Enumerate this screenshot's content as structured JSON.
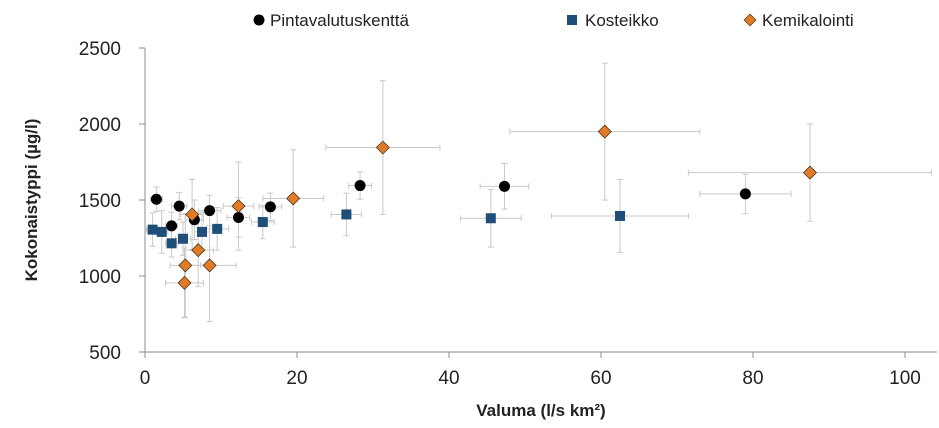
{
  "chart_data": {
    "type": "scatter",
    "xlabel": "Valuma (l/s km²)",
    "ylabel": "Kokonaistyppi (µg/l)",
    "xlim": [
      0,
      105
    ],
    "ylim": [
      500,
      2500
    ],
    "x_ticks": [
      0,
      20,
      40,
      60,
      80,
      100
    ],
    "y_ticks": [
      500,
      1000,
      1500,
      2000,
      2500
    ],
    "x_tick_labels": [
      "0",
      "20",
      "40",
      "60",
      "80",
      "100"
    ],
    "y_tick_labels": [
      "500",
      "1000",
      "1500",
      "2000",
      "2500"
    ],
    "grid": false,
    "error_bars": true,
    "legend_position": "top",
    "series": [
      {
        "name": "Pintavalutuskenttä",
        "marker": "circle",
        "color": "#000000",
        "points": [
          {
            "x": 1.5,
            "y": 1505,
            "xerr": 0.8,
            "yerr": 80
          },
          {
            "x": 3.5,
            "y": 1330,
            "xerr": 0.8,
            "yerr": 90
          },
          {
            "x": 4.5,
            "y": 1460,
            "xerr": 1.0,
            "yerr": 90
          },
          {
            "x": 6.5,
            "y": 1370,
            "xerr": 1.2,
            "yerr": 130
          },
          {
            "x": 8.5,
            "y": 1430,
            "xerr": 1.5,
            "yerr": 100
          },
          {
            "x": 12.3,
            "y": 1385,
            "xerr": 1.5,
            "yerr": 130
          },
          {
            "x": 16.5,
            "y": 1455,
            "xerr": 1.5,
            "yerr": 90
          },
          {
            "x": 28.3,
            "y": 1595,
            "xerr": 1.5,
            "yerr": 90
          },
          {
            "x": 47.3,
            "y": 1590,
            "xerr": 3.2,
            "yerr": 150
          },
          {
            "x": 79.0,
            "y": 1540,
            "xerr": 6.0,
            "yerr": 130
          }
        ]
      },
      {
        "name": "Kosteikko",
        "marker": "square",
        "color": "#1F4E79",
        "points": [
          {
            "x": 1.0,
            "y": 1305,
            "xerr": 0.8,
            "yerr": 110
          },
          {
            "x": 2.2,
            "y": 1290,
            "xerr": 0.8,
            "yerr": 140
          },
          {
            "x": 3.5,
            "y": 1215,
            "xerr": 0.8,
            "yerr": 90
          },
          {
            "x": 5.0,
            "y": 1245,
            "xerr": 1.0,
            "yerr": 110
          },
          {
            "x": 7.5,
            "y": 1290,
            "xerr": 1.0,
            "yerr": 130
          },
          {
            "x": 9.5,
            "y": 1310,
            "xerr": 1.5,
            "yerr": 140
          },
          {
            "x": 15.5,
            "y": 1355,
            "xerr": 1.5,
            "yerr": 110
          },
          {
            "x": 26.5,
            "y": 1405,
            "xerr": 2.0,
            "yerr": 140
          },
          {
            "x": 45.5,
            "y": 1380,
            "xerr": 4.0,
            "yerr": 190
          },
          {
            "x": 62.5,
            "y": 1395,
            "xerr": 9.0,
            "yerr": 240
          }
        ]
      },
      {
        "name": "Kemikalointi",
        "marker": "diamond",
        "color": "#E07B2A",
        "points": [
          {
            "x": 5.2,
            "y": 955,
            "xerr": 2.5,
            "yerr": 230
          },
          {
            "x": 5.3,
            "y": 1070,
            "xerr": 2.0,
            "yerr": 340
          },
          {
            "x": 6.2,
            "y": 1405,
            "xerr": 1.5,
            "yerr": 230
          },
          {
            "x": 7.0,
            "y": 1170,
            "xerr": 2.0,
            "yerr": 240
          },
          {
            "x": 8.5,
            "y": 1070,
            "xerr": 3.5,
            "yerr": 370
          },
          {
            "x": 12.3,
            "y": 1460,
            "xerr": 2.0,
            "yerr": 290
          },
          {
            "x": 19.5,
            "y": 1510,
            "xerr": 4.0,
            "yerr": 320
          },
          {
            "x": 31.3,
            "y": 1845,
            "xerr": 7.5,
            "yerr": 440
          },
          {
            "x": 60.5,
            "y": 1950,
            "xerr": 12.5,
            "yerr": 450
          },
          {
            "x": 87.5,
            "y": 1680,
            "xerr": 16.0,
            "yerr": 320
          }
        ]
      }
    ]
  }
}
